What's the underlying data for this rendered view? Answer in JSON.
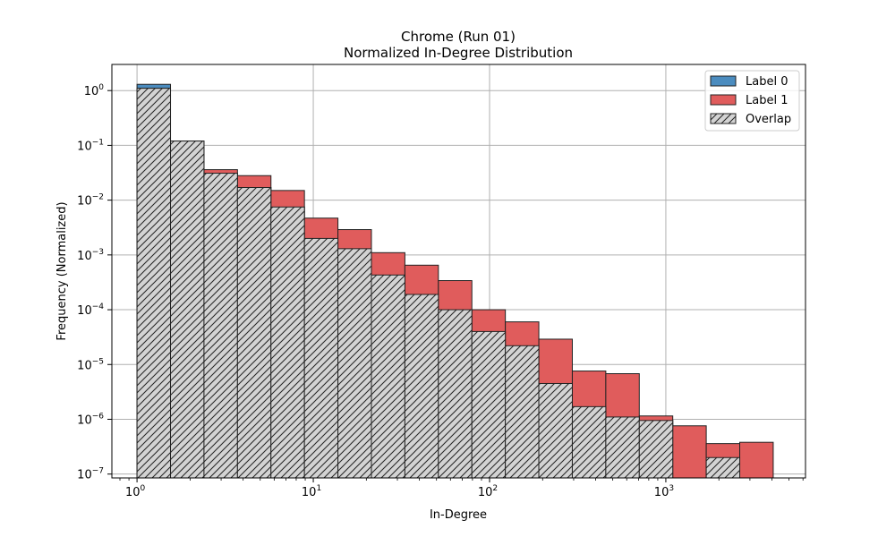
{
  "chart_data": {
    "type": "bar",
    "title": "Chrome (Run 01)",
    "subtitle": "Normalized In-Degree Distribution",
    "xlabel": "In-Degree",
    "ylabel": "Frequency (Normalized)",
    "xscale": "log",
    "yscale": "log",
    "xlim": [
      0.72,
      6200
    ],
    "ylim": [
      8.5e-08,
      3.0
    ],
    "x_ticks": [
      {
        "value": 1,
        "base": "10",
        "exp": "0"
      },
      {
        "value": 10,
        "base": "10",
        "exp": "1"
      },
      {
        "value": 100,
        "base": "10",
        "exp": "2"
      },
      {
        "value": 1000,
        "base": "10",
        "exp": "3"
      }
    ],
    "y_ticks": [
      {
        "value": 1e-07,
        "base": "10",
        "exp": "−7"
      },
      {
        "value": 1e-06,
        "base": "10",
        "exp": "−6"
      },
      {
        "value": 1e-05,
        "base": "10",
        "exp": "−5"
      },
      {
        "value": 0.0001,
        "base": "10",
        "exp": "−4"
      },
      {
        "value": 0.001,
        "base": "10",
        "exp": "−3"
      },
      {
        "value": 0.01,
        "base": "10",
        "exp": "−2"
      },
      {
        "value": 0.1,
        "base": "10",
        "exp": "−1"
      },
      {
        "value": 1,
        "base": "10",
        "exp": "0"
      }
    ],
    "grid": true,
    "legend_position": "top-right",
    "bin_edges": [
      1.0,
      1.5487,
      2.3985,
      3.7145,
      5.7526,
      8.9089,
      13.797,
      21.367,
      33.091,
      51.248,
      79.366,
      122.91,
      190.35,
      294.79,
      456.54,
      707.04,
      1094.9,
      1695.7,
      2626.1,
      4067.0
    ],
    "series": [
      {
        "name": "Label 0",
        "color": "#4b8cbf",
        "values": [
          1.3,
          0.12,
          0.031,
          0.017,
          0.0075,
          0.002,
          0.0013,
          0.00043,
          0.00019,
          0.0001,
          4e-05,
          2.2e-05,
          4.5e-06,
          1.7e-06,
          1.1e-06,
          9.5e-07,
          null,
          2e-07,
          null
        ]
      },
      {
        "name": "Label 1",
        "color": "#e05c5c",
        "values": [
          1.1,
          0.12,
          0.036,
          0.028,
          0.015,
          0.0047,
          0.0029,
          0.0011,
          0.00065,
          0.00034,
          0.0001,
          6e-05,
          2.9e-05,
          7.6e-06,
          6.8e-06,
          1.15e-06,
          7.6e-07,
          3.6e-07,
          3.8e-07
        ]
      },
      {
        "name": "Overlap",
        "color": "#d3d3d3",
        "hatch": "diagonal",
        "values": [
          1.1,
          0.12,
          0.031,
          0.017,
          0.0075,
          0.002,
          0.0013,
          0.00043,
          0.00019,
          0.0001,
          4e-05,
          2.2e-05,
          4.5e-06,
          1.7e-06,
          1.1e-06,
          9.5e-07,
          null,
          2e-07,
          null
        ]
      }
    ]
  }
}
